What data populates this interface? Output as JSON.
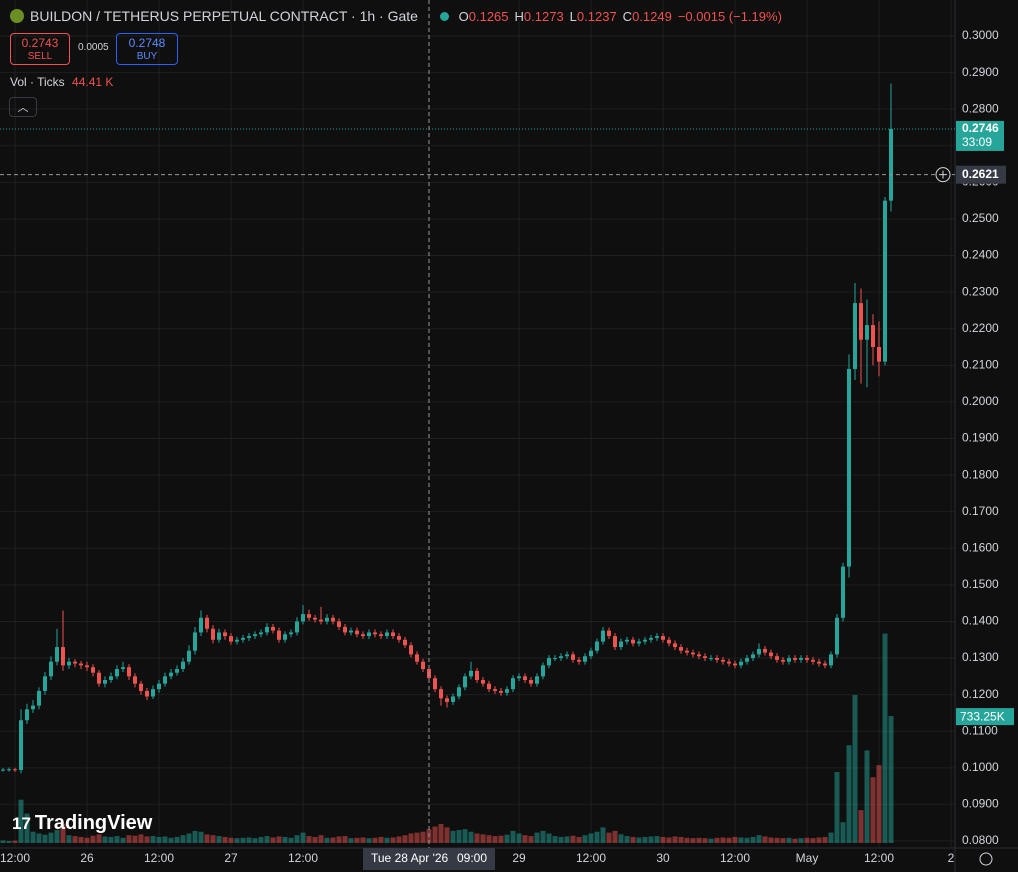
{
  "header": {
    "title": "BUILDON / TETHERUS PERPETUAL CONTRACT · 1h · Gate",
    "ohlc": [
      {
        "key": "O",
        "value": "0.1265"
      },
      {
        "key": "H",
        "value": "0.1273"
      },
      {
        "key": "L",
        "value": "0.1237"
      },
      {
        "key": "C",
        "value": "0.1249"
      }
    ],
    "change": "−0.0015 (−1.19%)",
    "sell": {
      "price": "0.2743",
      "label": "SELL"
    },
    "spread": "0.0005",
    "buy": {
      "price": "0.2748",
      "label": "BUY"
    },
    "indicator": "Vol · Ticks",
    "indicator_value": "44.41 K",
    "logo": "TradingView"
  },
  "chart_data": {
    "type": "candlestick",
    "up_color": "#26a69a",
    "down_color": "#ef5350",
    "grid": true,
    "ylim": [
      0.08,
      0.3
    ],
    "yticks": [
      {
        "value": 0.08,
        "label": "0.0800"
      },
      {
        "value": 0.09,
        "label": "0.0900"
      },
      {
        "value": 0.1,
        "label": "0.1000"
      },
      {
        "value": 0.11,
        "label": "0.1100"
      },
      {
        "value": 0.12,
        "label": "0.1200"
      },
      {
        "value": 0.13,
        "label": "0.1300"
      },
      {
        "value": 0.14,
        "label": "0.1400"
      },
      {
        "value": 0.15,
        "label": "0.1500"
      },
      {
        "value": 0.16,
        "label": "0.1600"
      },
      {
        "value": 0.17,
        "label": "0.1700"
      },
      {
        "value": 0.18,
        "label": "0.1800"
      },
      {
        "value": 0.19,
        "label": "0.1900"
      },
      {
        "value": 0.2,
        "label": "0.2000"
      },
      {
        "value": 0.21,
        "label": "0.2100"
      },
      {
        "value": 0.22,
        "label": "0.2200"
      },
      {
        "value": 0.23,
        "label": "0.2300"
      },
      {
        "value": 0.24,
        "label": "0.2400"
      },
      {
        "value": 0.25,
        "label": "0.2500"
      },
      {
        "value": 0.26,
        "label": "0.2600"
      },
      {
        "value": 0.27,
        "label": "0.2700"
      },
      {
        "value": 0.28,
        "label": "0.2800"
      },
      {
        "value": 0.29,
        "label": "0.2900"
      },
      {
        "value": 0.3,
        "label": "0.3000"
      }
    ],
    "xticks": [
      {
        "value": 2,
        "label": "12:00"
      },
      {
        "value": 14,
        "label": "26"
      },
      {
        "value": 26,
        "label": "12:00"
      },
      {
        "value": 38,
        "label": "27"
      },
      {
        "value": 50,
        "label": "12:00"
      },
      {
        "value": 86,
        "label": "29"
      },
      {
        "value": 98,
        "label": "12:00"
      },
      {
        "value": 110,
        "label": "30"
      },
      {
        "value": 122,
        "label": "12:00"
      },
      {
        "value": 134,
        "label": "May"
      },
      {
        "value": 146,
        "label": "12:00"
      },
      {
        "value": 158,
        "label": "2"
      }
    ],
    "crosshair": {
      "value": 71,
      "price": 0.2621,
      "date": "Tue 28 Apr '26",
      "time": "09:00"
    },
    "countdown": "33:09",
    "candles": [
      [
        0.0995,
        0.1,
        0.099,
        0.0995
      ],
      [
        0.0995,
        0.1001,
        0.099,
        0.0996
      ],
      [
        0.0996,
        0.1,
        0.0989,
        0.0994
      ],
      [
        0.0994,
        0.116,
        0.0985,
        0.113
      ],
      [
        0.113,
        0.1175,
        0.112,
        0.116
      ],
      [
        0.116,
        0.1185,
        0.115,
        0.117
      ],
      [
        0.117,
        0.122,
        0.116,
        0.121
      ],
      [
        0.121,
        0.1262,
        0.12,
        0.125
      ],
      [
        0.125,
        0.1305,
        0.124,
        0.129
      ],
      [
        0.129,
        0.138,
        0.128,
        0.133
      ],
      [
        0.133,
        0.143,
        0.1265,
        0.128
      ],
      [
        0.128,
        0.13,
        0.127,
        0.129
      ],
      [
        0.129,
        0.1297,
        0.1275,
        0.1285
      ],
      [
        0.1285,
        0.1292,
        0.127,
        0.128
      ],
      [
        0.128,
        0.129,
        0.1265,
        0.1275
      ],
      [
        0.1275,
        0.1283,
        0.125,
        0.126
      ],
      [
        0.126,
        0.1267,
        0.1222,
        0.123
      ],
      [
        0.123,
        0.125,
        0.122,
        0.124
      ],
      [
        0.124,
        0.126,
        0.1232,
        0.125
      ],
      [
        0.125,
        0.128,
        0.1242,
        0.127
      ],
      [
        0.127,
        0.129,
        0.1262,
        0.1275
      ],
      [
        0.1275,
        0.1283,
        0.124,
        0.125
      ],
      [
        0.125,
        0.1258,
        0.122,
        0.123
      ],
      [
        0.123,
        0.1238,
        0.12,
        0.121
      ],
      [
        0.121,
        0.1218,
        0.1185,
        0.1195
      ],
      [
        0.1195,
        0.1225,
        0.1188,
        0.1215
      ],
      [
        0.1215,
        0.124,
        0.1205,
        0.123
      ],
      [
        0.123,
        0.126,
        0.1222,
        0.125
      ],
      [
        0.125,
        0.127,
        0.1242,
        0.126
      ],
      [
        0.126,
        0.128,
        0.1252,
        0.127
      ],
      [
        0.127,
        0.13,
        0.1262,
        0.129
      ],
      [
        0.129,
        0.1335,
        0.1282,
        0.132
      ],
      [
        0.132,
        0.1385,
        0.131,
        0.137
      ],
      [
        0.137,
        0.143,
        0.136,
        0.141
      ],
      [
        0.141,
        0.1418,
        0.137,
        0.138
      ],
      [
        0.138,
        0.139,
        0.134,
        0.135
      ],
      [
        0.135,
        0.138,
        0.1342,
        0.137
      ],
      [
        0.137,
        0.1378,
        0.135,
        0.136
      ],
      [
        0.136,
        0.1368,
        0.1337,
        0.1345
      ],
      [
        0.1345,
        0.1358,
        0.1337,
        0.135
      ],
      [
        0.135,
        0.1363,
        0.1342,
        0.1355
      ],
      [
        0.1355,
        0.1368,
        0.1347,
        0.136
      ],
      [
        0.136,
        0.1373,
        0.1352,
        0.1365
      ],
      [
        0.1365,
        0.1378,
        0.1357,
        0.137
      ],
      [
        0.137,
        0.1395,
        0.1362,
        0.1385
      ],
      [
        0.1385,
        0.1393,
        0.1367,
        0.1375
      ],
      [
        0.1375,
        0.1383,
        0.1342,
        0.135
      ],
      [
        0.135,
        0.1373,
        0.1342,
        0.1365
      ],
      [
        0.1365,
        0.1378,
        0.1357,
        0.137
      ],
      [
        0.137,
        0.1412,
        0.1362,
        0.14
      ],
      [
        0.14,
        0.1445,
        0.1392,
        0.142
      ],
      [
        0.142,
        0.1432,
        0.1402,
        0.141
      ],
      [
        0.141,
        0.1418,
        0.1397,
        0.1405
      ],
      [
        0.1405,
        0.144,
        0.1392,
        0.14
      ],
      [
        0.14,
        0.142,
        0.1392,
        0.141
      ],
      [
        0.141,
        0.1418,
        0.1392,
        0.14
      ],
      [
        0.14,
        0.1408,
        0.1377,
        0.1385
      ],
      [
        0.1385,
        0.1393,
        0.1362,
        0.137
      ],
      [
        0.137,
        0.1383,
        0.1362,
        0.1375
      ],
      [
        0.1375,
        0.1383,
        0.1357,
        0.1365
      ],
      [
        0.1365,
        0.1373,
        0.1352,
        0.136
      ],
      [
        0.136,
        0.1378,
        0.1352,
        0.137
      ],
      [
        0.137,
        0.1378,
        0.1357,
        0.1365
      ],
      [
        0.1365,
        0.1373,
        0.1352,
        0.136
      ],
      [
        0.136,
        0.1378,
        0.1352,
        0.137
      ],
      [
        0.137,
        0.1378,
        0.1352,
        0.136
      ],
      [
        0.136,
        0.1368,
        0.1342,
        0.135
      ],
      [
        0.135,
        0.1358,
        0.1327,
        0.1335
      ],
      [
        0.1335,
        0.1343,
        0.1302,
        0.131
      ],
      [
        0.131,
        0.1318,
        0.1282,
        0.129
      ],
      [
        0.129,
        0.1298,
        0.1262,
        0.127
      ],
      [
        0.127,
        0.1278,
        0.1237,
        0.1245
      ],
      [
        0.1245,
        0.1253,
        0.1207,
        0.1215
      ],
      [
        0.1215,
        0.1223,
        0.117,
        0.119
      ],
      [
        0.119,
        0.1198,
        0.1165,
        0.118
      ],
      [
        0.118,
        0.1203,
        0.1172,
        0.1195
      ],
      [
        0.1195,
        0.1228,
        0.1187,
        0.122
      ],
      [
        0.122,
        0.1258,
        0.1212,
        0.125
      ],
      [
        0.125,
        0.129,
        0.1242,
        0.1265
      ],
      [
        0.1265,
        0.1273,
        0.1232,
        0.124
      ],
      [
        0.124,
        0.1248,
        0.1222,
        0.123
      ],
      [
        0.123,
        0.1238,
        0.1207,
        0.1215
      ],
      [
        0.1215,
        0.1223,
        0.1202,
        0.121
      ],
      [
        0.121,
        0.1218,
        0.1197,
        0.1205
      ],
      [
        0.1205,
        0.1223,
        0.1197,
        0.1215
      ],
      [
        0.1215,
        0.1253,
        0.1207,
        0.1245
      ],
      [
        0.1245,
        0.1258,
        0.1237,
        0.125
      ],
      [
        0.125,
        0.1258,
        0.1232,
        0.124
      ],
      [
        0.124,
        0.1248,
        0.1222,
        0.123
      ],
      [
        0.123,
        0.1258,
        0.1222,
        0.125
      ],
      [
        0.125,
        0.1288,
        0.1242,
        0.128
      ],
      [
        0.128,
        0.1308,
        0.1272,
        0.13
      ],
      [
        0.13,
        0.1308,
        0.1292,
        0.13
      ],
      [
        0.13,
        0.1313,
        0.1292,
        0.1305
      ],
      [
        0.1305,
        0.1318,
        0.1297,
        0.131
      ],
      [
        0.131,
        0.1318,
        0.1287,
        0.1295
      ],
      [
        0.1295,
        0.1303,
        0.1282,
        0.129
      ],
      [
        0.129,
        0.1313,
        0.1282,
        0.1305
      ],
      [
        0.1305,
        0.1328,
        0.1297,
        0.132
      ],
      [
        0.132,
        0.1353,
        0.1312,
        0.1345
      ],
      [
        0.1345,
        0.1385,
        0.1337,
        0.1375
      ],
      [
        0.1375,
        0.1383,
        0.1352,
        0.136
      ],
      [
        0.136,
        0.1368,
        0.1322,
        0.133
      ],
      [
        0.133,
        0.1353,
        0.1322,
        0.1345
      ],
      [
        0.1345,
        0.1358,
        0.1337,
        0.135
      ],
      [
        0.135,
        0.1358,
        0.1332,
        0.134
      ],
      [
        0.134,
        0.1353,
        0.1332,
        0.1345
      ],
      [
        0.1345,
        0.1358,
        0.1337,
        0.135
      ],
      [
        0.135,
        0.1363,
        0.1342,
        0.1355
      ],
      [
        0.1355,
        0.1368,
        0.1347,
        0.136
      ],
      [
        0.136,
        0.1368,
        0.1342,
        0.135
      ],
      [
        0.135,
        0.1358,
        0.1332,
        0.134
      ],
      [
        0.134,
        0.1348,
        0.1322,
        0.133
      ],
      [
        0.133,
        0.1338,
        0.1312,
        0.132
      ],
      [
        0.132,
        0.1328,
        0.1307,
        0.1315
      ],
      [
        0.1315,
        0.1323,
        0.1302,
        0.131
      ],
      [
        0.131,
        0.1318,
        0.1297,
        0.1305
      ],
      [
        0.1305,
        0.1313,
        0.1292,
        0.13
      ],
      [
        0.13,
        0.1308,
        0.1292,
        0.13
      ],
      [
        0.13,
        0.1308,
        0.1287,
        0.1295
      ],
      [
        0.1295,
        0.1303,
        0.1282,
        0.129
      ],
      [
        0.129,
        0.1298,
        0.1277,
        0.1285
      ],
      [
        0.1285,
        0.1293,
        0.1272,
        0.128
      ],
      [
        0.128,
        0.1298,
        0.1272,
        0.129
      ],
      [
        0.129,
        0.1308,
        0.1282,
        0.13
      ],
      [
        0.13,
        0.1318,
        0.1292,
        0.131
      ],
      [
        0.131,
        0.134,
        0.1302,
        0.1325
      ],
      [
        0.1325,
        0.1333,
        0.1307,
        0.1315
      ],
      [
        0.1315,
        0.1323,
        0.1297,
        0.1305
      ],
      [
        0.1305,
        0.1313,
        0.1287,
        0.1295
      ],
      [
        0.1295,
        0.1303,
        0.1282,
        0.129
      ],
      [
        0.129,
        0.1308,
        0.1282,
        0.13
      ],
      [
        0.13,
        0.1308,
        0.1287,
        0.1295
      ],
      [
        0.1295,
        0.1308,
        0.1287,
        0.13
      ],
      [
        0.13,
        0.1308,
        0.1287,
        0.1295
      ],
      [
        0.1295,
        0.1303,
        0.1282,
        0.129
      ],
      [
        0.129,
        0.1298,
        0.1277,
        0.1285
      ],
      [
        0.1285,
        0.1293,
        0.1272,
        0.128
      ],
      [
        0.128,
        0.1318,
        0.1272,
        0.131
      ],
      [
        0.131,
        0.142,
        0.1302,
        0.141
      ],
      [
        0.141,
        0.156,
        0.14,
        0.155
      ],
      [
        0.155,
        0.213,
        0.152,
        0.209
      ],
      [
        0.209,
        0.2325,
        0.206,
        0.227
      ],
      [
        0.227,
        0.231,
        0.205,
        0.217
      ],
      [
        0.217,
        0.228,
        0.204,
        0.221
      ],
      [
        0.221,
        0.224,
        0.21,
        0.215
      ],
      [
        0.215,
        0.222,
        0.207,
        0.211
      ],
      [
        0.211,
        0.256,
        0.21,
        0.255
      ],
      [
        0.255,
        0.287,
        0.252,
        0.2746
      ]
    ],
    "volume_lim": [
      0,
      1300000
    ],
    "volumes": [
      15000,
      12000,
      14000,
      250000,
      170000,
      65000,
      55000,
      48000,
      60000,
      75000,
      110000,
      45000,
      40000,
      35000,
      30000,
      42000,
      50000,
      38000,
      35000,
      40000,
      30000,
      45000,
      42000,
      50000,
      38000,
      40000,
      35000,
      38000,
      30000,
      35000,
      45000,
      55000,
      70000,
      65000,
      50000,
      45000,
      40000,
      35000,
      30000,
      28000,
      30000,
      32000,
      28000,
      35000,
      40000,
      32000,
      38000,
      35000,
      30000,
      45000,
      60000,
      40000,
      35000,
      45000,
      30000,
      32000,
      38000,
      40000,
      28000,
      30000,
      32000,
      28000,
      30000,
      35000,
      30000,
      32000,
      38000,
      45000,
      55000,
      60000,
      65000,
      80000,
      95000,
      110000,
      90000,
      70000,
      75000,
      80000,
      65000,
      55000,
      50000,
      45000,
      40000,
      42000,
      48000,
      70000,
      55000,
      45000,
      40000,
      60000,
      70000,
      55000,
      40000,
      35000,
      38000,
      42000,
      35000,
      45000,
      55000,
      65000,
      90000,
      60000,
      70000,
      50000,
      40000,
      35000,
      32000,
      35000,
      38000,
      40000,
      35000,
      32000,
      38000,
      35000,
      30000,
      28000,
      30000,
      28000,
      25000,
      30000,
      32000,
      30000,
      35000,
      32000,
      30000,
      35000,
      45000,
      38000,
      32000,
      30000,
      28000,
      30000,
      25000,
      28000,
      30000,
      28000,
      32000,
      35000,
      60000,
      410000,
      120000,
      565000,
      855000,
      190000,
      535000,
      380000,
      450000,
      1210000,
      733250
    ],
    "volume_label": "733.25K"
  }
}
